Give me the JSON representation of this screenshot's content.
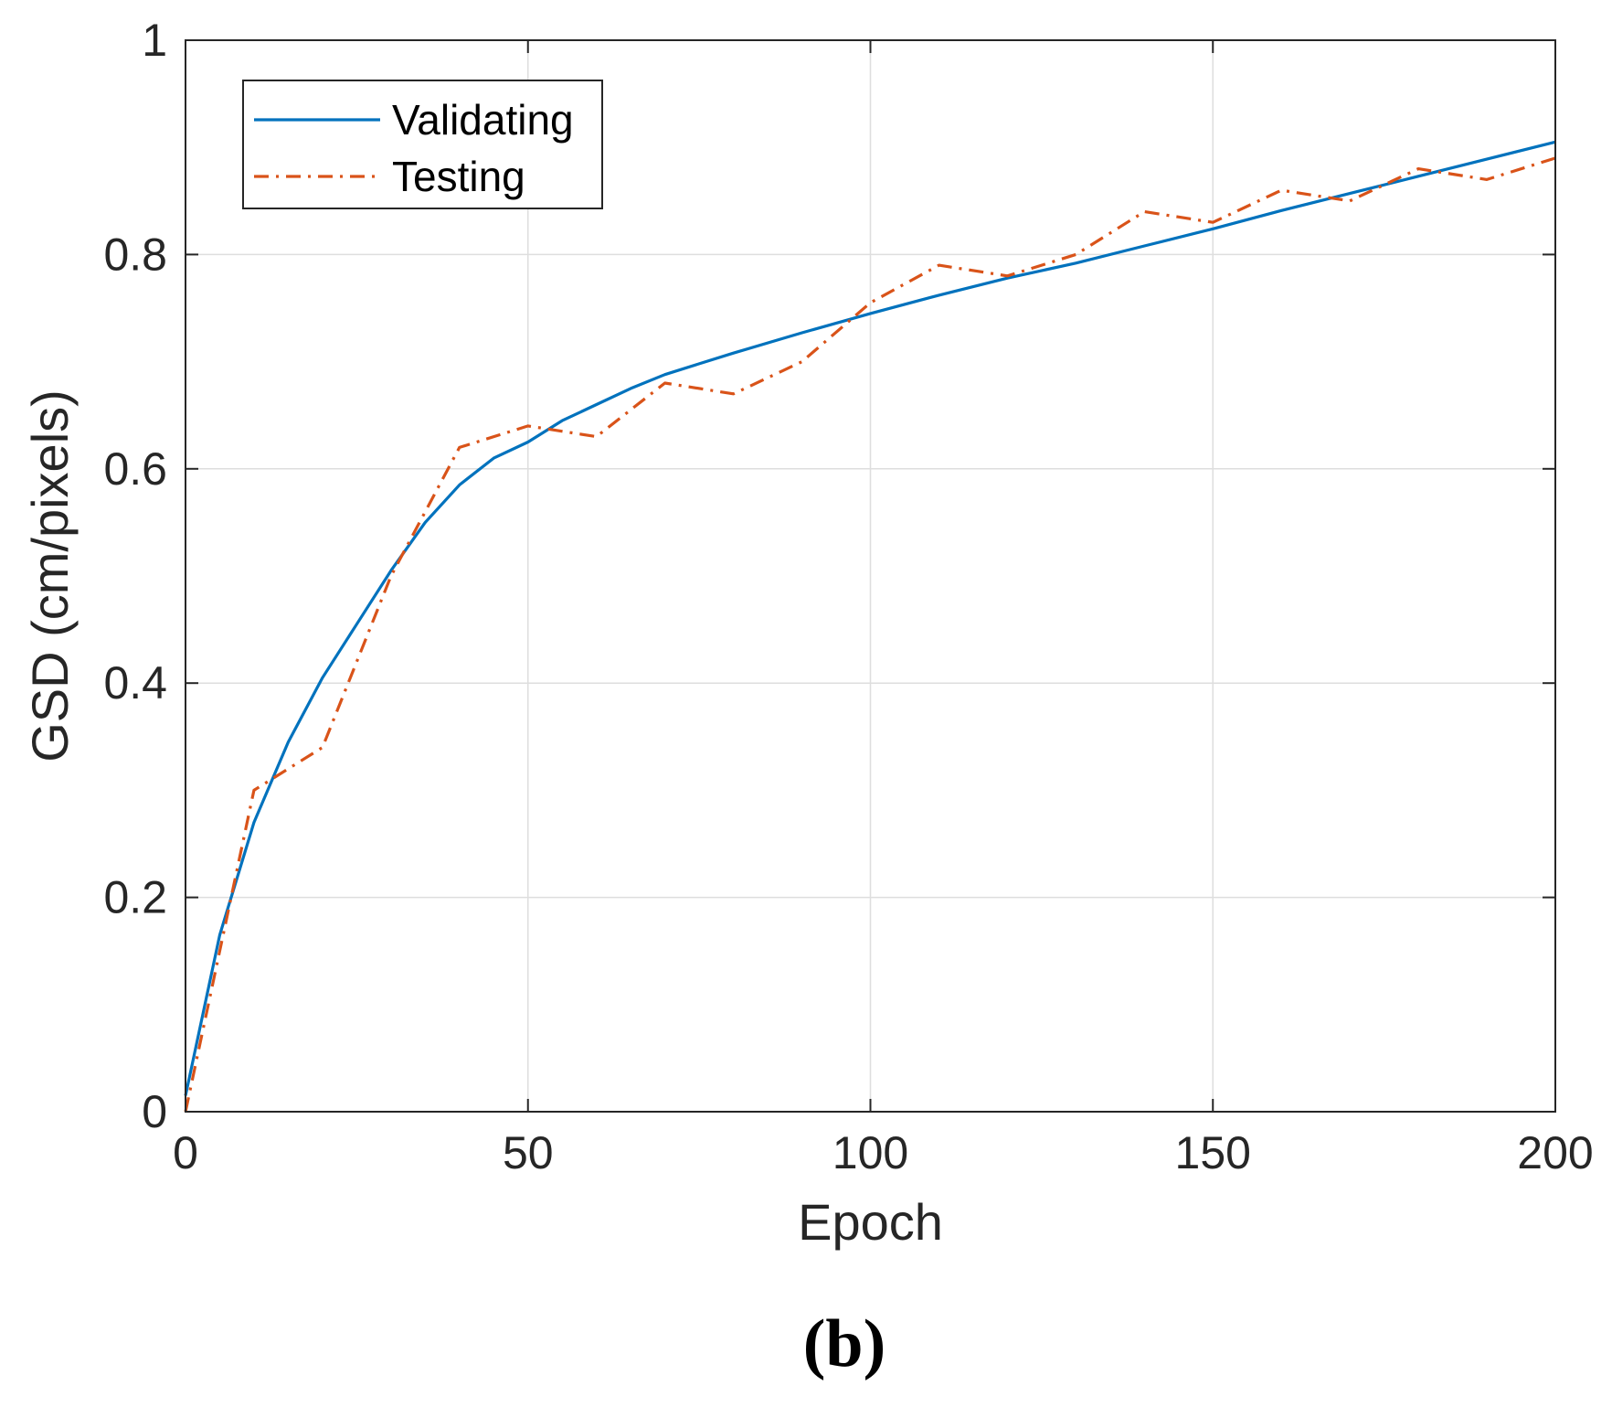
{
  "chart_data": {
    "type": "line",
    "title": "",
    "xlabel": "Epoch",
    "ylabel": "GSD (cm/pixels)",
    "xlim": [
      0,
      200
    ],
    "ylim": [
      0,
      1
    ],
    "xticks": [
      0,
      50,
      100,
      150,
      200
    ],
    "yticks": [
      0,
      0.2,
      0.4,
      0.6,
      0.8,
      1
    ],
    "xtick_labels": [
      "0",
      "50",
      "100",
      "150",
      "200"
    ],
    "ytick_labels": [
      "0",
      "0.2",
      "0.4",
      "0.6",
      "0.8",
      "1"
    ],
    "grid": true,
    "legend": {
      "position": "top-left",
      "entries": [
        "Validating",
        "Testing"
      ]
    },
    "panel_label": "(b)",
    "series": [
      {
        "name": "Validating",
        "color": "#0072BD",
        "style": "solid",
        "x": [
          0,
          5,
          10,
          15,
          20,
          25,
          30,
          35,
          40,
          45,
          50,
          55,
          60,
          65,
          70,
          75,
          80,
          90,
          100,
          110,
          120,
          130,
          140,
          150,
          160,
          170,
          180,
          190,
          200
        ],
        "y": [
          0.015,
          0.165,
          0.27,
          0.345,
          0.405,
          0.455,
          0.505,
          0.55,
          0.585,
          0.61,
          0.625,
          0.645,
          0.66,
          0.675,
          0.688,
          0.698,
          0.708,
          0.727,
          0.745,
          0.762,
          0.778,
          0.792,
          0.808,
          0.824,
          0.841,
          0.857,
          0.873,
          0.889,
          0.905
        ]
      },
      {
        "name": "Testing",
        "color": "#D95319",
        "style": "dashdot",
        "x": [
          0,
          10,
          20,
          30,
          40,
          50,
          60,
          70,
          80,
          90,
          100,
          110,
          120,
          130,
          140,
          150,
          160,
          170,
          180,
          190,
          200
        ],
        "y": [
          0.0,
          0.3,
          0.34,
          0.5,
          0.62,
          0.64,
          0.63,
          0.68,
          0.67,
          0.7,
          0.755,
          0.79,
          0.78,
          0.8,
          0.84,
          0.83,
          0.86,
          0.85,
          0.88,
          0.87,
          0.89
        ]
      }
    ]
  }
}
